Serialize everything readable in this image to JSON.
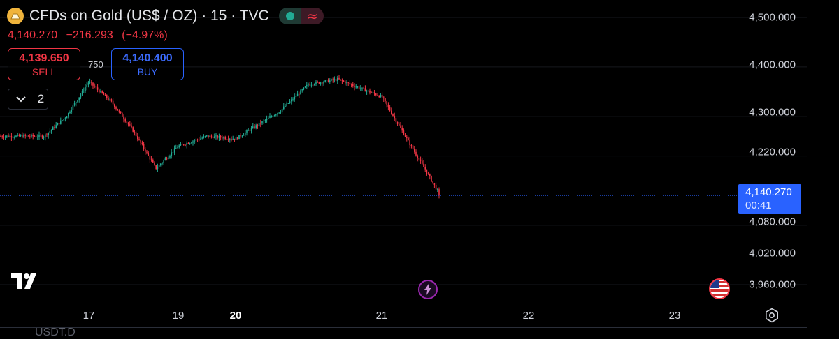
{
  "header": {
    "title": "CFDs on Gold (US$ / OZ) · 15 · TVC",
    "last_price": "4,140.270",
    "change": "−216.293",
    "change_pct": "(−4.97%)"
  },
  "trade": {
    "sell_price": "4,139.650",
    "sell_label": "SELL",
    "spread": "750",
    "buy_price": "4,140.400",
    "buy_label": "BUY"
  },
  "indicators": {
    "count": "2"
  },
  "price_axis": {
    "labels": [
      "4,500.000",
      "4,400.000",
      "4,300.000",
      "4,220.000",
      "4,080.000",
      "4,020.000",
      "3,960.000"
    ],
    "current_price": "4,140.270",
    "countdown": "00:41"
  },
  "time_axis": {
    "labels": [
      "17",
      "19",
      "20",
      "21",
      "22",
      "23"
    ],
    "bold_label": "20"
  },
  "footer": {
    "ticker": "USDT.D"
  },
  "colors": {
    "up": "#22ab94",
    "down": "#f23645",
    "accent": "#2962ff",
    "background": "#000000"
  },
  "icons": [
    "gold-symbol-icon",
    "status-dot-icon",
    "wave-icon",
    "chevron-down-icon",
    "tradingview-logo",
    "lightning-icon",
    "us-flag-icon",
    "settings-icon"
  ],
  "chart_data": {
    "type": "candlestick",
    "interval": "15",
    "y_axis_range": [
      3960,
      4500
    ],
    "x_ticks": [
      "17",
      "19",
      "20",
      "21",
      "22",
      "23"
    ],
    "approx_path": [
      {
        "x": "16",
        "price": 4260
      },
      {
        "x": "16.5",
        "price": 4300
      },
      {
        "x": "17",
        "price": 4370
      },
      {
        "x": "17.5",
        "price": 4330
      },
      {
        "x": "18",
        "price": 4270
      },
      {
        "x": "18.5",
        "price": 4195
      },
      {
        "x": "19",
        "price": 4240
      },
      {
        "x": "19.5",
        "price": 4260
      },
      {
        "x": "20",
        "price": 4255
      },
      {
        "x": "20.3",
        "price": 4310
      },
      {
        "x": "20.5",
        "price": 4365
      },
      {
        "x": "20.7",
        "price": 4375
      },
      {
        "x": "21",
        "price": 4340
      },
      {
        "x": "21.2",
        "price": 4240
      },
      {
        "x": "21.4",
        "price": 4140
      }
    ],
    "last": 4140.27
  }
}
